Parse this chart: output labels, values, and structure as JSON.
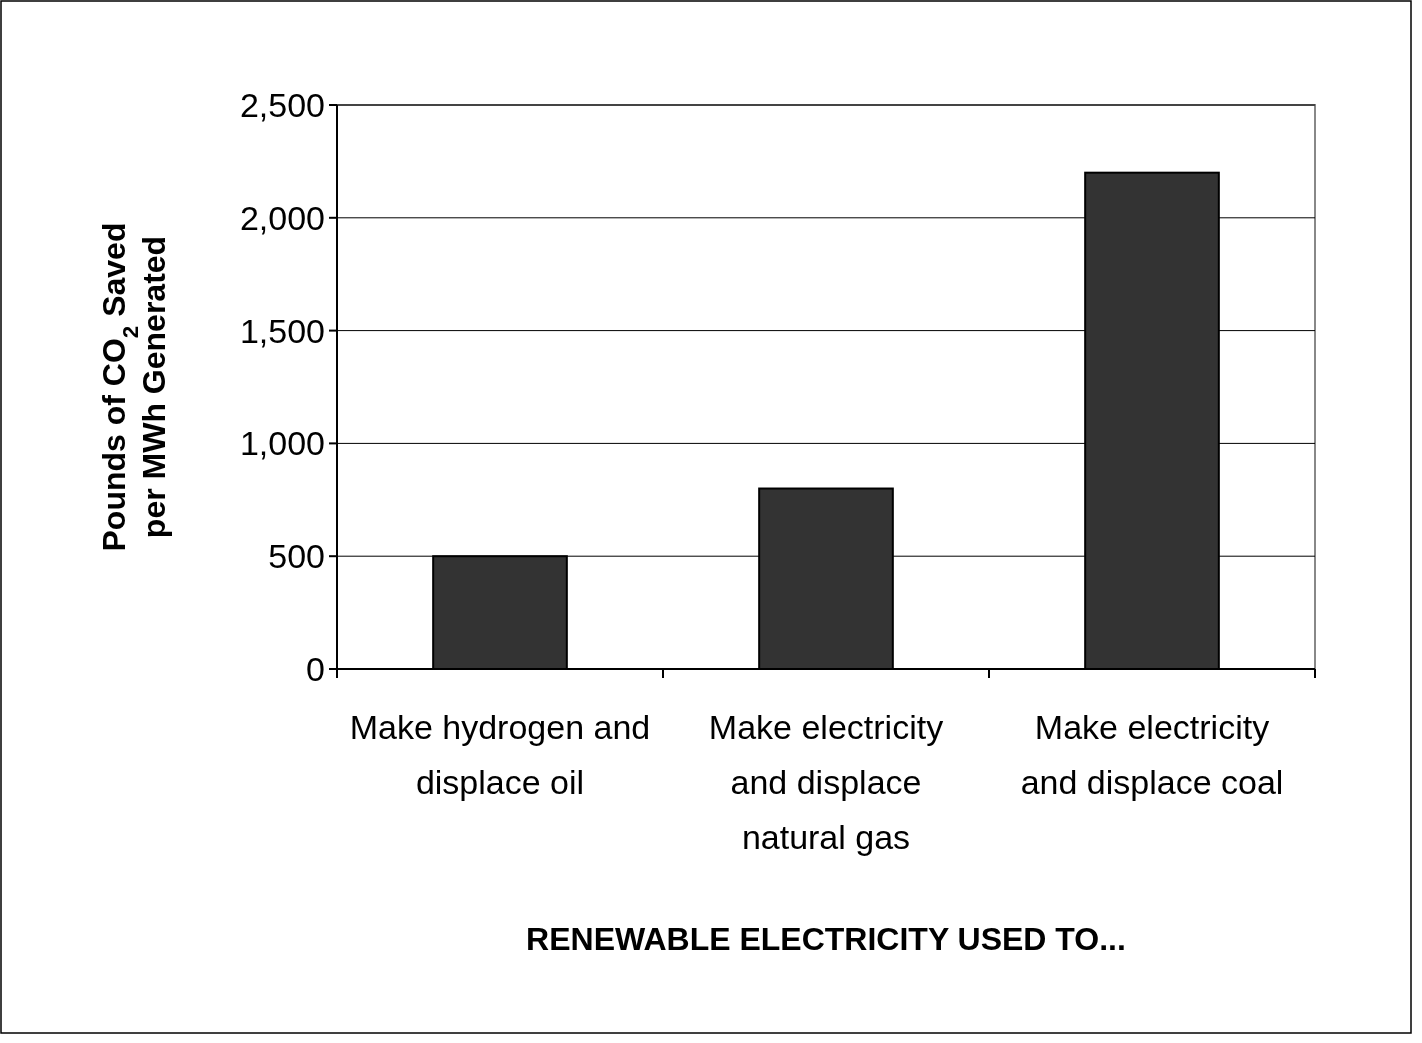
{
  "chart_data": {
    "type": "bar",
    "xlabel": "RENEWABLE ELECTRICITY USED TO...",
    "ylabel": "Pounds of CO$_{2}$ Saved\nper MWh Generated",
    "categories": [
      "Make hydrogen and displace oil",
      "Make electricity and displace natural gas",
      "Make electricity and displace coal"
    ],
    "values": [
      500,
      800,
      2200
    ],
    "color": "#333333",
    "ylim": [
      0,
      2500
    ],
    "yticks": [
      0,
      {
        "value": 500,
        "label": "500"
      },
      {
        "value": 1000,
        "label": "1,000"
      },
      {
        "value": 1500,
        "label": "1,500"
      },
      {
        "value": 2000,
        "label": "2,000"
      },
      {
        "value": 2500,
        "label": "2,500"
      }
    ],
    "grid": "y"
  }
}
